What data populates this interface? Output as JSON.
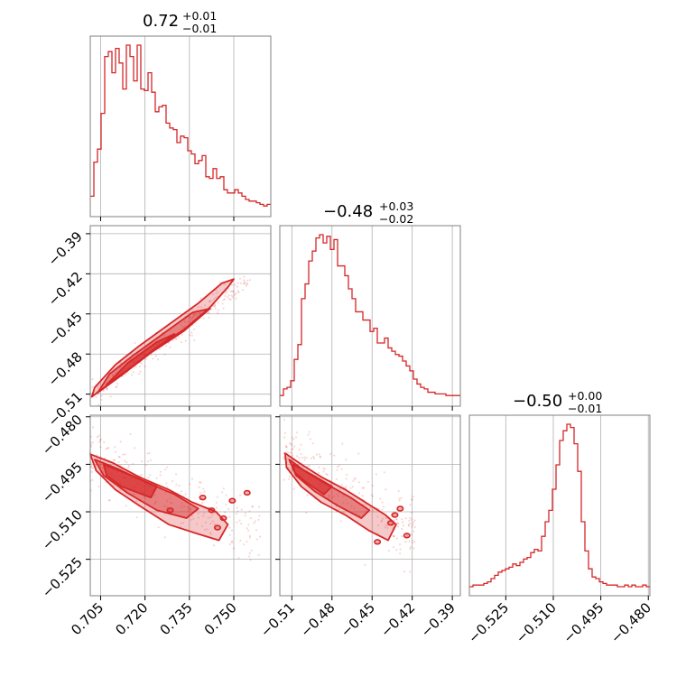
{
  "figure": {
    "params": [
      {
        "title_value": "0.72",
        "err_plus": "+0.01",
        "err_minus": "−0.01"
      },
      {
        "title_value": "−0.48",
        "err_plus": "+0.03",
        "err_minus": "−0.02"
      },
      {
        "title_value": "−0.50",
        "err_plus": "+0.00",
        "err_minus": "−0.01"
      }
    ],
    "color": "#d62728"
  },
  "chart_data": [
    {
      "type": "histogram",
      "parameter_index": 0,
      "xlim": [
        0.7015,
        0.7625
      ],
      "xticks": [
        "0.705",
        "0.720",
        "0.735",
        "0.750"
      ],
      "xtick_values": [
        0.705,
        0.72,
        0.735,
        0.75
      ],
      "bin_edges_start": 0.7015,
      "bin_width": 0.00122,
      "counts": [
        7,
        28,
        36,
        58,
        93,
        96,
        83,
        98,
        89,
        73,
        100,
        93,
        78,
        100,
        73,
        72,
        83,
        71,
        59,
        62,
        63,
        52,
        49,
        48,
        40,
        44,
        43,
        35,
        33,
        27,
        29,
        32,
        19,
        18,
        24,
        18,
        19,
        11,
        9,
        9,
        11,
        9,
        7,
        5,
        4,
        4,
        3,
        2,
        1,
        2
      ]
    },
    {
      "type": "histogram",
      "parameter_index": 1,
      "xlim": [
        -0.519,
        -0.384
      ],
      "xticks": [
        "−0.51",
        "−0.48",
        "−0.45",
        "−0.42",
        "−0.39"
      ],
      "xtick_values": [
        -0.51,
        -0.48,
        -0.45,
        -0.42,
        -0.39
      ],
      "bin_edges_start": -0.519,
      "bin_width": 0.0027,
      "counts": [
        1,
        5,
        6,
        10,
        23,
        32,
        60,
        69,
        83,
        89,
        97,
        99,
        94,
        98,
        90,
        96,
        80,
        80,
        74,
        66,
        60,
        52,
        52,
        47,
        47,
        40,
        42,
        33,
        33,
        36,
        30,
        28,
        26,
        25,
        22,
        19,
        16,
        11,
        8,
        6,
        5,
        3,
        3,
        2,
        2,
        2,
        1,
        1,
        1,
        1
      ]
    },
    {
      "type": "histogram",
      "parameter_index": 2,
      "xlim": [
        -0.5365,
        -0.4795
      ],
      "xticks": [
        "−0.525",
        "−0.510",
        "−0.495",
        "−0.480"
      ],
      "xtick_values": [
        -0.525,
        -0.51,
        -0.495,
        -0.48
      ],
      "bin_edges_start": -0.5365,
      "bin_width": 0.00114,
      "counts": [
        0,
        1,
        1,
        1,
        2,
        3,
        5,
        7,
        9,
        10,
        11,
        12,
        14,
        13,
        15,
        17,
        18,
        21,
        23,
        22,
        31,
        40,
        47,
        60,
        75,
        90,
        96,
        100,
        98,
        88,
        71,
        40,
        22,
        11,
        6,
        5,
        3,
        2,
        1,
        1,
        1,
        0,
        0,
        1,
        0,
        1,
        0,
        0,
        1,
        0
      ]
    },
    {
      "type": "2d-density",
      "x_parameter_index": 0,
      "y_parameter_index": 1,
      "xlim": [
        0.7015,
        0.7625
      ],
      "ylim": [
        -0.519,
        -0.384
      ],
      "yticks": [
        "−0.39",
        "−0.42",
        "−0.45",
        "−0.48",
        "−0.51"
      ],
      "ytick_values": [
        -0.39,
        -0.42,
        -0.45,
        -0.48,
        -0.51
      ],
      "contour_levels": [
        [
          [
            0.702,
            -0.512
          ],
          [
            0.708,
            -0.502
          ],
          [
            0.716,
            -0.489
          ],
          [
            0.724,
            -0.475
          ],
          [
            0.733,
            -0.462
          ],
          [
            0.742,
            -0.445
          ],
          [
            0.748,
            -0.43
          ],
          [
            0.75,
            -0.424
          ],
          [
            0.746,
            -0.427
          ],
          [
            0.738,
            -0.442
          ],
          [
            0.728,
            -0.458
          ],
          [
            0.718,
            -0.474
          ],
          [
            0.71,
            -0.488
          ],
          [
            0.703,
            -0.505
          ]
        ],
        [
          [
            0.704,
            -0.509
          ],
          [
            0.712,
            -0.496
          ],
          [
            0.722,
            -0.479
          ],
          [
            0.733,
            -0.463
          ],
          [
            0.742,
            -0.446
          ],
          [
            0.736,
            -0.449
          ],
          [
            0.726,
            -0.465
          ],
          [
            0.716,
            -0.481
          ],
          [
            0.708,
            -0.495
          ]
        ],
        [
          [
            0.707,
            -0.503
          ],
          [
            0.716,
            -0.489
          ],
          [
            0.726,
            -0.472
          ],
          [
            0.73,
            -0.465
          ],
          [
            0.724,
            -0.471
          ],
          [
            0.714,
            -0.487
          ]
        ]
      ]
    },
    {
      "type": "2d-density",
      "x_parameter_index": 0,
      "y_parameter_index": 2,
      "xlim": [
        0.7015,
        0.7625
      ],
      "ylim": [
        -0.5365,
        -0.4795
      ],
      "yticks": [
        "−0.480",
        "−0.495",
        "−0.510",
        "−0.525"
      ],
      "ytick_values": [
        -0.48,
        -0.495,
        -0.51,
        -0.525
      ],
      "contour_levels": [
        [
          [
            0.7015,
            -0.4918
          ],
          [
            0.709,
            -0.4945
          ],
          [
            0.718,
            -0.499
          ],
          [
            0.728,
            -0.503
          ],
          [
            0.736,
            -0.507
          ],
          [
            0.744,
            -0.51
          ],
          [
            0.748,
            -0.514
          ],
          [
            0.745,
            -0.519
          ],
          [
            0.738,
            -0.517
          ],
          [
            0.728,
            -0.514
          ],
          [
            0.718,
            -0.508
          ],
          [
            0.71,
            -0.503
          ],
          [
            0.7035,
            -0.497
          ]
        ],
        [
          [
            0.703,
            -0.4935
          ],
          [
            0.711,
            -0.4965
          ],
          [
            0.72,
            -0.5005
          ],
          [
            0.73,
            -0.5045
          ],
          [
            0.738,
            -0.509
          ],
          [
            0.734,
            -0.512
          ],
          [
            0.724,
            -0.5095
          ],
          [
            0.714,
            -0.504
          ],
          [
            0.706,
            -0.4985
          ]
        ],
        [
          [
            0.706,
            -0.495
          ],
          [
            0.714,
            -0.498
          ],
          [
            0.724,
            -0.502
          ],
          [
            0.722,
            -0.5055
          ],
          [
            0.712,
            -0.502
          ],
          [
            0.707,
            -0.4985
          ]
        ]
      ],
      "islands": [
        [
          0.7395,
          -0.5055
        ],
        [
          0.7425,
          -0.5095
        ],
        [
          0.7445,
          -0.515
        ],
        [
          0.7495,
          -0.5065
        ],
        [
          0.7545,
          -0.504
        ],
        [
          0.7285,
          -0.5095
        ],
        [
          0.7465,
          -0.512
        ]
      ]
    },
    {
      "type": "2d-density",
      "x_parameter_index": 1,
      "y_parameter_index": 2,
      "xlim": [
        -0.519,
        -0.384
      ],
      "ylim": [
        -0.5365,
        -0.4795
      ],
      "contour_levels": [
        [
          [
            -0.515,
            -0.4915
          ],
          [
            -0.503,
            -0.495
          ],
          [
            -0.488,
            -0.499
          ],
          [
            -0.47,
            -0.503
          ],
          [
            -0.455,
            -0.507
          ],
          [
            -0.44,
            -0.511
          ],
          [
            -0.432,
            -0.514
          ],
          [
            -0.438,
            -0.519
          ],
          [
            -0.452,
            -0.516
          ],
          [
            -0.47,
            -0.511
          ],
          [
            -0.488,
            -0.507
          ],
          [
            -0.503,
            -0.502
          ],
          [
            -0.514,
            -0.496
          ]
        ],
        [
          [
            -0.512,
            -0.4935
          ],
          [
            -0.499,
            -0.4975
          ],
          [
            -0.483,
            -0.5015
          ],
          [
            -0.466,
            -0.5055
          ],
          [
            -0.452,
            -0.5095
          ],
          [
            -0.458,
            -0.512
          ],
          [
            -0.476,
            -0.508
          ],
          [
            -0.493,
            -0.5035
          ],
          [
            -0.507,
            -0.4985
          ]
        ],
        [
          [
            -0.509,
            -0.495
          ],
          [
            -0.494,
            -0.4985
          ],
          [
            -0.48,
            -0.502
          ],
          [
            -0.486,
            -0.5045
          ],
          [
            -0.5,
            -0.5005
          ],
          [
            -0.508,
            -0.4975
          ]
        ]
      ],
      "islands": [
        [
          -0.436,
          -0.5135
        ],
        [
          -0.429,
          -0.509
        ],
        [
          -0.424,
          -0.5175
        ],
        [
          -0.446,
          -0.5195
        ],
        [
          -0.433,
          -0.511
        ]
      ]
    }
  ]
}
